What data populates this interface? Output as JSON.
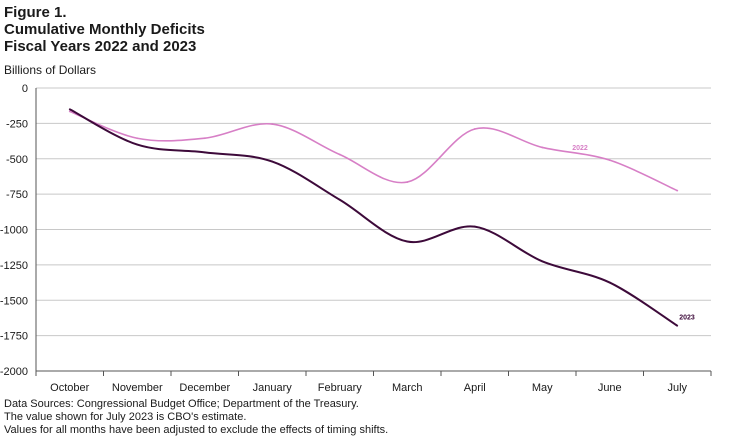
{
  "figure_label": "Figure 1.",
  "title_lines": [
    "Cumulative Monthly Deficits",
    "Fiscal Years 2022 and 2023"
  ],
  "notes": [
    "Data Sources: Congressional Budget Office; Department of the Treasury.",
    "The value shown for July 2023 is CBO's estimate.",
    "Values for all months have been adjusted to exclude the effects of timing shifts."
  ],
  "chart_data": {
    "type": "line",
    "title": "Cumulative Monthly Deficits Fiscal Years 2022 and 2023",
    "ylabel": "Billions of Dollars",
    "xlabel": "",
    "categories": [
      "October",
      "November",
      "December",
      "January",
      "February",
      "March",
      "April",
      "May",
      "June",
      "July"
    ],
    "ylim": [
      -2000,
      0
    ],
    "yticks": [
      0,
      -250,
      -500,
      -750,
      -1000,
      -1250,
      -1500,
      -1750,
      -2000
    ],
    "grid": true,
    "series": [
      {
        "name": "2022",
        "color": "#d77fc6",
        "values": [
          -165,
          -355,
          -355,
          -255,
          -470,
          -665,
          -290,
          -420,
          -510,
          -725
        ]
      },
      {
        "name": "2023",
        "color": "#3d0a3a",
        "values": [
          -150,
          -400,
          -455,
          -520,
          -790,
          -1085,
          -980,
          -1225,
          -1375,
          -1680
        ]
      }
    ]
  }
}
